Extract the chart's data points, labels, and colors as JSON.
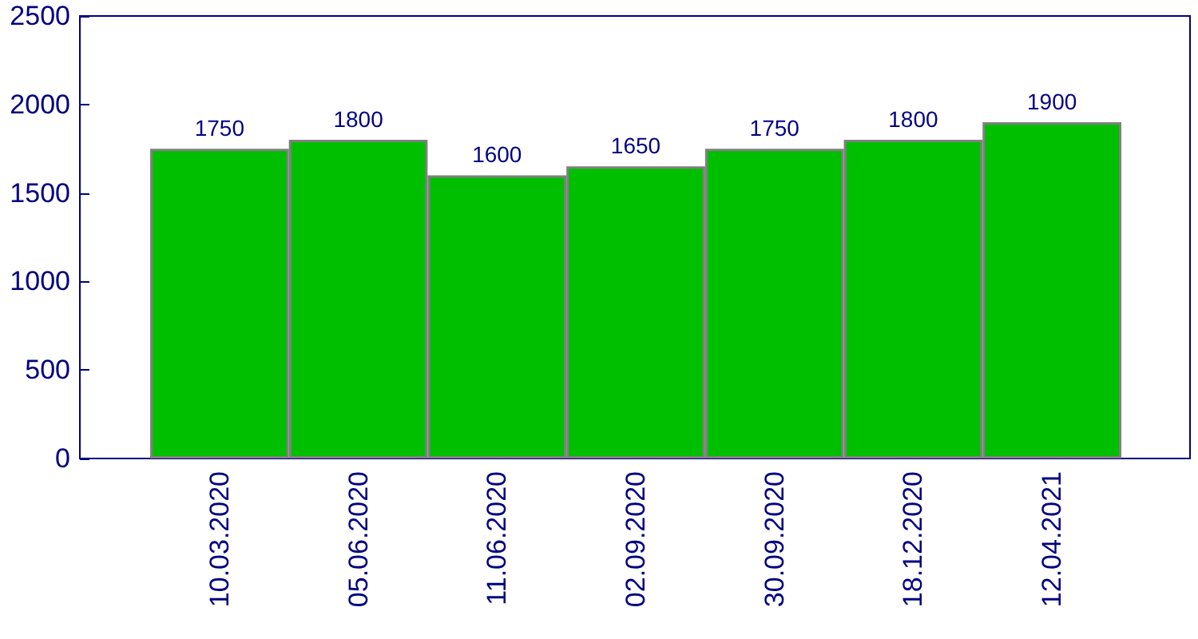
{
  "chart_data": {
    "type": "bar",
    "categories": [
      "10.03.2020",
      "05.06.2020",
      "11.06.2020",
      "02.09.2020",
      "30.09.2020",
      "18.12.2020",
      "12.04.2021"
    ],
    "values": [
      1750,
      1800,
      1600,
      1650,
      1750,
      1800,
      1900
    ],
    "color": "#00bf00",
    "ylim": [
      0,
      2500
    ],
    "yticks": [
      0,
      500,
      1000,
      1500,
      2000,
      2500
    ],
    "data_labels": true
  }
}
